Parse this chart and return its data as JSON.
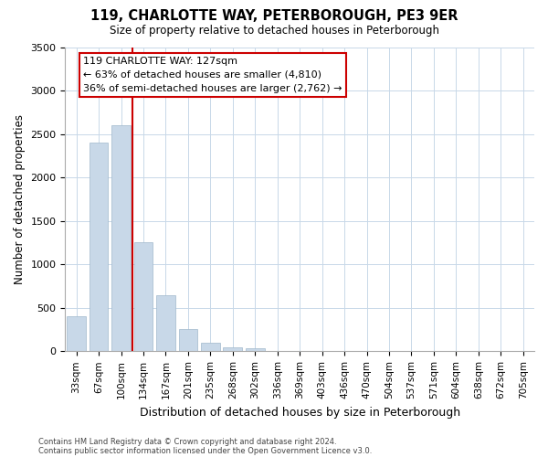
{
  "title": "119, CHARLOTTE WAY, PETERBOROUGH, PE3 9ER",
  "subtitle": "Size of property relative to detached houses in Peterborough",
  "xlabel": "Distribution of detached houses by size in Peterborough",
  "ylabel": "Number of detached properties",
  "footnote1": "Contains HM Land Registry data © Crown copyright and database right 2024.",
  "footnote2": "Contains public sector information licensed under the Open Government Licence v3.0.",
  "bar_labels": [
    "33sqm",
    "67sqm",
    "100sqm",
    "134sqm",
    "167sqm",
    "201sqm",
    "235sqm",
    "268sqm",
    "302sqm",
    "336sqm",
    "369sqm",
    "403sqm",
    "436sqm",
    "470sqm",
    "504sqm",
    "537sqm",
    "571sqm",
    "604sqm",
    "638sqm",
    "672sqm",
    "705sqm"
  ],
  "bar_values": [
    400,
    2400,
    2600,
    1250,
    640,
    260,
    100,
    50,
    30,
    0,
    0,
    0,
    0,
    0,
    0,
    0,
    0,
    0,
    0,
    0,
    0
  ],
  "bar_color": "#c8d8e8",
  "bar_edge_color": "#a0b8cc",
  "vline_x": 2.5,
  "vline_color": "#cc0000",
  "ylim": [
    0,
    3500
  ],
  "yticks": [
    0,
    500,
    1000,
    1500,
    2000,
    2500,
    3000,
    3500
  ],
  "annotation_title": "119 CHARLOTTE WAY: 127sqm",
  "annotation_line1": "← 63% of detached houses are smaller (4,810)",
  "annotation_line2": "36% of semi-detached houses are larger (2,762) →",
  "background_color": "#ffffff",
  "grid_color": "#c8d8e8"
}
